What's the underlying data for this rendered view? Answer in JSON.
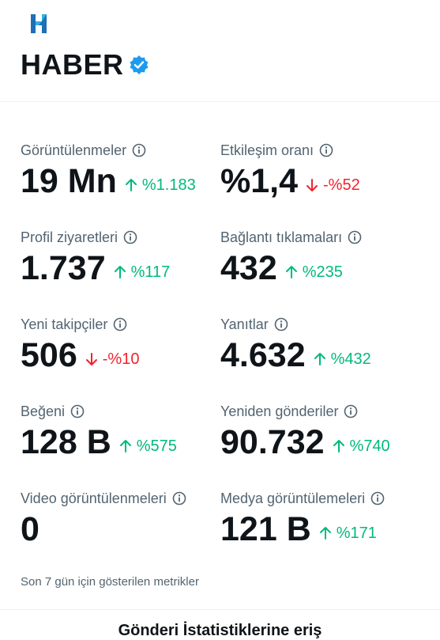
{
  "account": {
    "name": "HABER",
    "logo_letter": "H",
    "verified": true
  },
  "metrics": [
    {
      "label": "Görüntülenmeler",
      "value": "19 Mn",
      "change": "%1.183",
      "direction": "up"
    },
    {
      "label": "Etkileşim oranı",
      "value": "%1,4",
      "change": "-%52",
      "direction": "down"
    },
    {
      "label": "Profil ziyaretleri",
      "value": "1.737",
      "change": "%117",
      "direction": "up"
    },
    {
      "label": "Bağlantı tıklamaları",
      "value": "432",
      "change": "%235",
      "direction": "up"
    },
    {
      "label": "Yeni takipçiler",
      "value": "506",
      "change": "-%10",
      "direction": "down"
    },
    {
      "label": "Yanıtlar",
      "value": "4.632",
      "change": "%432",
      "direction": "up"
    },
    {
      "label": "Beğeni",
      "value": "128 B",
      "change": "%575",
      "direction": "up"
    },
    {
      "label": "Yeniden gönderiler",
      "value": "90.732",
      "change": "%740",
      "direction": "up"
    },
    {
      "label": "Video görüntülenmeleri",
      "value": "0",
      "change": "",
      "direction": "none"
    },
    {
      "label": "Medya görüntülemeleri",
      "value": "121 B",
      "change": "%171",
      "direction": "up"
    }
  ],
  "footnote": "Son 7 gün için gösterilen metrikler",
  "bottom_link": "Gönderi İstatistiklerine eriş",
  "colors": {
    "up": "#00ba7c",
    "down": "#f4212e",
    "verified": "#1d9bf0",
    "secondary_text": "#536471"
  }
}
